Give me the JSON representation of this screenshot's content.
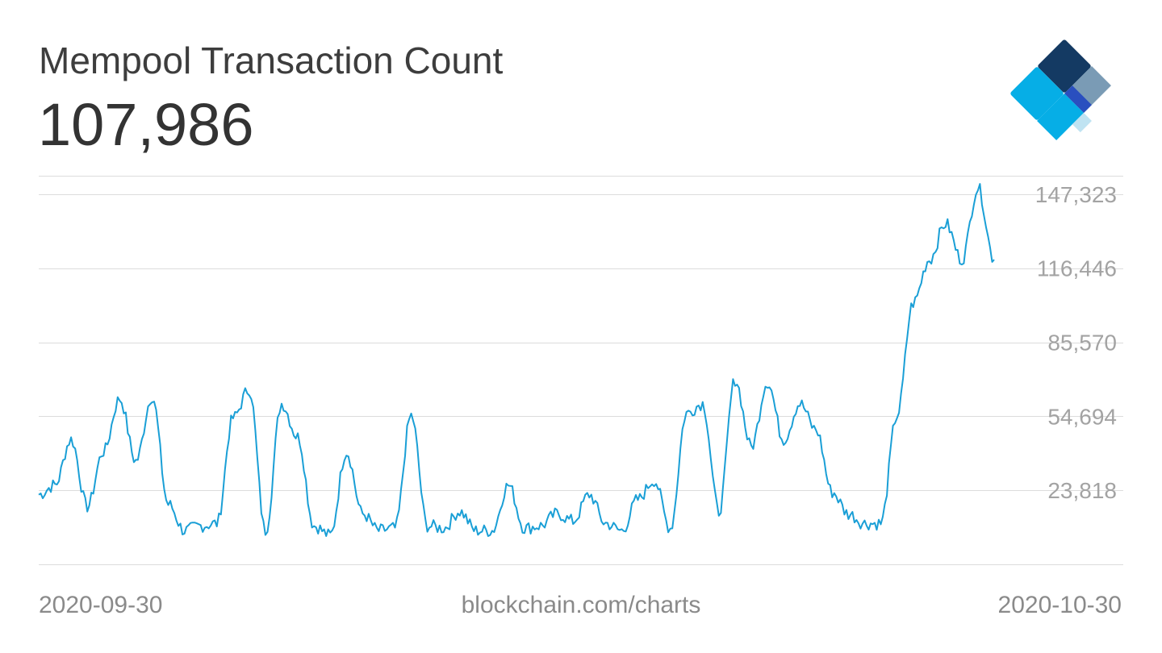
{
  "header": {
    "title": "Mempool Transaction Count",
    "current_value": "107,986"
  },
  "footer": {
    "start_date": "2020-09-30",
    "source": "blockchain.com/charts",
    "end_date": "2020-10-30"
  },
  "colors": {
    "line": "#1a9fd6",
    "grid": "#dcdcdc",
    "tick_label": "#a3a3a3",
    "logo_dark_navy": "#143a63",
    "logo_steel": "#7a9bb5",
    "logo_royal_blue": "#2a4fbf",
    "logo_cyan": "#06aee6",
    "logo_light_blue": "#bfe3f2"
  },
  "icons": {
    "logo": "blockchain-diamond-logo-icon"
  },
  "chart_data": {
    "type": "line",
    "title": "Mempool Transaction Count",
    "xlabel": "",
    "ylabel": "",
    "xlim": [
      "2020-09-30",
      "2020-10-30"
    ],
    "ylim": [
      -7058,
      155000
    ],
    "yticks": [
      {
        "value": 23818,
        "label": "23,818"
      },
      {
        "value": 54694,
        "label": "54,694"
      },
      {
        "value": 85570,
        "label": "85,570"
      },
      {
        "value": 116446,
        "label": "116,446"
      },
      {
        "value": 147323,
        "label": "147,323"
      }
    ],
    "grid": true,
    "legend": "none",
    "series": [
      {
        "x": [
          "2020-09-30",
          "2020-09-30 12:00",
          "2020-10-01",
          "2020-10-01 12:00",
          "2020-10-02",
          "2020-10-02 12:00",
          "2020-10-03",
          "2020-10-03 12:00",
          "2020-10-04",
          "2020-10-04 12:00",
          "2020-10-05",
          "2020-10-05 12:00",
          "2020-10-06",
          "2020-10-06 12:00",
          "2020-10-07",
          "2020-10-07 12:00",
          "2020-10-08",
          "2020-10-08 12:00",
          "2020-10-09",
          "2020-10-09 12:00",
          "2020-10-10",
          "2020-10-10 12:00",
          "2020-10-11",
          "2020-10-11 12:00",
          "2020-10-12",
          "2020-10-12 12:00",
          "2020-10-13",
          "2020-10-13 12:00",
          "2020-10-14",
          "2020-10-14 12:00",
          "2020-10-15",
          "2020-10-15 12:00",
          "2020-10-16",
          "2020-10-16 12:00",
          "2020-10-17",
          "2020-10-17 12:00",
          "2020-10-18",
          "2020-10-18 12:00",
          "2020-10-19",
          "2020-10-19 12:00",
          "2020-10-20",
          "2020-10-20 12:00",
          "2020-10-21",
          "2020-10-21 12:00",
          "2020-10-22",
          "2020-10-22 12:00",
          "2020-10-23",
          "2020-10-23 12:00",
          "2020-10-24",
          "2020-10-24 12:00",
          "2020-10-25",
          "2020-10-25 12:00",
          "2020-10-26",
          "2020-10-26 12:00",
          "2020-10-27",
          "2020-10-27 12:00",
          "2020-10-28",
          "2020-10-28 12:00",
          "2020-10-29",
          "2020-10-29 12:00"
        ],
        "y": [
          22000,
          26000,
          45000,
          17000,
          40000,
          62000,
          36000,
          63000,
          18000,
          7000,
          9000,
          10000,
          54000,
          66000,
          7000,
          60000,
          46000,
          9000,
          5000,
          40000,
          14000,
          7000,
          8000,
          55000,
          9000,
          8000,
          15000,
          7000,
          7000,
          26000,
          8000,
          9000,
          14000,
          11000,
          22000,
          10000,
          7000,
          20000,
          28000,
          8000,
          56000,
          60000,
          15000,
          70000,
          42000,
          69000,
          45000,
          60000,
          49000,
          23000,
          14000,
          10000,
          10000,
          55000,
          102000,
          120000,
          135000,
          120000,
          150000,
          120000
        ]
      }
    ]
  }
}
